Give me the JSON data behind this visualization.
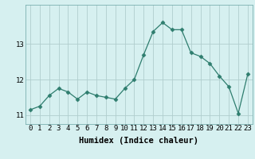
{
  "x": [
    0,
    1,
    2,
    3,
    4,
    5,
    6,
    7,
    8,
    9,
    10,
    11,
    12,
    13,
    14,
    15,
    16,
    17,
    18,
    19,
    20,
    21,
    22,
    23
  ],
  "y": [
    11.15,
    11.25,
    11.55,
    11.75,
    11.65,
    11.45,
    11.65,
    11.55,
    11.5,
    11.45,
    11.75,
    12.0,
    12.7,
    13.35,
    13.6,
    13.4,
    13.4,
    12.75,
    12.65,
    12.45,
    12.1,
    11.8,
    11.05,
    12.15
  ],
  "xlabel": "Humidex (Indice chaleur)",
  "ylabel": "",
  "ylim": [
    10.75,
    14.1
  ],
  "yticks": [
    11,
    12,
    13
  ],
  "xlim": [
    -0.5,
    23.5
  ],
  "line_color": "#2e7d6e",
  "marker": "D",
  "marker_size": 2.5,
  "bg_color": "#d6f0f0",
  "grid_color": "#b0cece",
  "label_fontsize": 7.5,
  "tick_fontsize": 6.5
}
